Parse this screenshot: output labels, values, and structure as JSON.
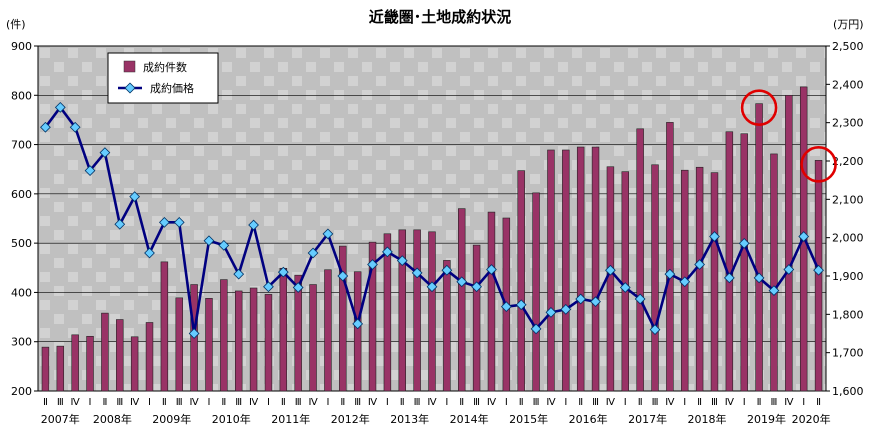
{
  "chart_data": {
    "type": "bar+line",
    "title": "近畿圏･土地成約状況",
    "ylabel_left": "(件)",
    "ylabel_right": "(万円)",
    "ylim_left": [
      200,
      900
    ],
    "ylim_right": [
      1600,
      2500
    ],
    "yticks_left": [
      "200",
      "300",
      "400",
      "500",
      "600",
      "700",
      "800",
      "900"
    ],
    "yticks_right": [
      "1,600",
      "1,700",
      "1,800",
      "1,900",
      "2,000",
      "2,100",
      "2,200",
      "2,300",
      "2,400",
      "2,500"
    ],
    "grid": true,
    "legend_position": "top-left",
    "categories": [
      "Ⅱ",
      "Ⅲ",
      "Ⅳ",
      "Ⅰ",
      "Ⅱ",
      "Ⅲ",
      "Ⅳ",
      "Ⅰ",
      "Ⅱ",
      "Ⅲ",
      "Ⅳ",
      "Ⅰ",
      "Ⅱ",
      "Ⅲ",
      "Ⅳ",
      "Ⅰ",
      "Ⅱ",
      "Ⅲ",
      "Ⅳ",
      "Ⅰ",
      "Ⅱ",
      "Ⅲ",
      "Ⅳ",
      "Ⅰ",
      "Ⅱ",
      "Ⅲ",
      "Ⅳ",
      "Ⅰ",
      "Ⅱ",
      "Ⅲ",
      "Ⅳ",
      "Ⅰ",
      "Ⅱ",
      "Ⅲ",
      "Ⅳ",
      "Ⅰ",
      "Ⅱ",
      "Ⅲ",
      "Ⅳ",
      "Ⅰ",
      "Ⅱ",
      "Ⅲ",
      "Ⅳ",
      "Ⅰ",
      "Ⅱ",
      "Ⅲ",
      "Ⅳ",
      "Ⅰ",
      "Ⅱ",
      "Ⅲ",
      "Ⅳ",
      "Ⅰ",
      "Ⅱ"
    ],
    "year_labels": [
      {
        "label": "2007年",
        "start": 0,
        "end": 2
      },
      {
        "label": "2008年",
        "start": 3,
        "end": 6
      },
      {
        "label": "2009年",
        "start": 7,
        "end": 10
      },
      {
        "label": "2010年",
        "start": 11,
        "end": 14
      },
      {
        "label": "2011年",
        "start": 15,
        "end": 18
      },
      {
        "label": "2012年",
        "start": 19,
        "end": 22
      },
      {
        "label": "2013年",
        "start": 23,
        "end": 26
      },
      {
        "label": "2014年",
        "start": 27,
        "end": 30
      },
      {
        "label": "2015年",
        "start": 31,
        "end": 34
      },
      {
        "label": "2016年",
        "start": 35,
        "end": 38
      },
      {
        "label": "2017年",
        "start": 39,
        "end": 42
      },
      {
        "label": "2018年",
        "start": 43,
        "end": 46
      },
      {
        "label": "2019年",
        "start": 47,
        "end": 50
      },
      {
        "label": "2020年",
        "start": 51,
        "end": 52
      }
    ],
    "series": [
      {
        "name": "成約件数",
        "type": "bar",
        "axis": "left",
        "color": "#993366",
        "values": [
          289,
          291,
          314,
          311,
          358,
          345,
          310,
          339,
          462,
          389,
          416,
          388,
          426,
          403,
          409,
          396,
          449,
          435,
          416,
          446,
          494,
          442,
          502,
          519,
          527,
          527,
          523,
          465,
          570,
          496,
          563,
          551,
          647,
          602,
          689,
          689,
          695,
          695,
          655,
          645,
          732,
          659,
          745,
          648,
          654,
          643,
          726,
          722,
          783,
          681,
          800,
          817,
          668
        ]
      },
      {
        "name": "成約価格",
        "type": "line",
        "axis": "right",
        "color": "#000080",
        "marker_color": "#66CCFF",
        "values": [
          2288,
          2340,
          2288,
          2175,
          2222,
          2035,
          2107,
          1960,
          2040,
          2040,
          1750,
          1992,
          1980,
          1905,
          2033,
          1872,
          1910,
          1870,
          1960,
          2010,
          1900,
          1775,
          1930,
          1963,
          1940,
          1908,
          1872,
          1915,
          1885,
          1872,
          1917,
          1820,
          1825,
          1762,
          1805,
          1813,
          1840,
          1833,
          1915,
          1870,
          1840,
          1760,
          1905,
          1885,
          1930,
          2003,
          1895,
          1985,
          1895,
          1862,
          1917,
          2003,
          1915
        ]
      }
    ],
    "highlights": [
      {
        "series": "成約件数",
        "index": 48,
        "shape": "circle",
        "color": "#E00000"
      },
      {
        "series": "成約件数",
        "index": 52,
        "shape": "circle",
        "color": "#E00000"
      }
    ]
  }
}
